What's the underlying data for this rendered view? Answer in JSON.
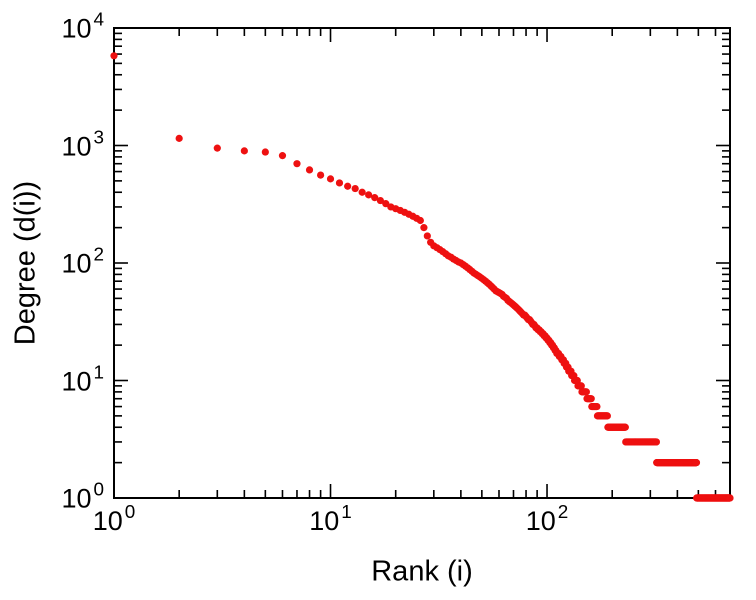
{
  "chart_data": {
    "type": "scatter",
    "title": "",
    "xlabel": "Rank (i)",
    "ylabel": "Degree (d(i))",
    "xscale": "log",
    "yscale": "log",
    "xlim": [
      1,
      700
    ],
    "ylim": [
      1,
      10000
    ],
    "grid": false,
    "legend": "none",
    "tick_label_base": "10",
    "x_tick_exponents": [
      0,
      1,
      2
    ],
    "y_tick_exponents": [
      0,
      1,
      2,
      3,
      4
    ],
    "background_color": "#ffffff",
    "frame_color": "#000000",
    "marker_color": "#ee1111",
    "marker_size": 3.6,
    "points_explicit": {
      "start_rank": 1,
      "degrees": [
        5800,
        1150,
        950,
        900,
        880,
        820,
        700,
        620,
        560,
        520,
        480,
        450,
        430,
        400,
        380,
        360,
        340,
        320,
        300,
        290,
        280,
        270,
        260,
        250,
        240,
        230,
        200,
        170,
        150,
        140,
        135,
        130,
        125,
        120,
        115,
        112,
        108,
        105,
        102,
        100,
        97,
        94,
        91,
        88,
        85,
        82,
        80,
        78,
        76,
        74,
        72,
        70,
        68,
        66,
        64,
        62,
        60,
        58,
        57,
        56,
        55,
        54,
        52,
        51,
        50,
        48,
        47,
        46,
        45,
        44,
        43,
        42,
        41,
        40,
        39,
        38,
        37,
        36,
        36,
        35,
        34,
        33,
        33,
        32,
        31,
        30,
        30,
        29,
        28,
        28,
        27,
        27,
        26,
        26,
        25,
        25,
        24,
        24,
        23,
        23,
        22,
        22,
        21,
        21,
        20,
        20,
        19,
        19,
        18,
        18,
        17,
        17,
        17,
        16,
        16,
        16,
        15,
        15,
        15,
        14,
        14,
        14,
        13,
        13,
        13,
        12,
        12,
        12,
        12,
        11,
        11,
        11,
        11,
        10,
        10,
        10,
        10,
        10,
        9,
        9,
        9,
        9,
        9,
        9,
        8
      ]
    },
    "tail_runs": [
      {
        "degree": 8,
        "from": 146,
        "to": 152
      },
      {
        "degree": 7,
        "from": 153,
        "to": 160
      },
      {
        "degree": 6,
        "from": 161,
        "to": 170
      },
      {
        "degree": 5,
        "from": 171,
        "to": 190
      },
      {
        "degree": 4,
        "from": 191,
        "to": 230
      },
      {
        "degree": 3,
        "from": 231,
        "to": 320
      },
      {
        "degree": 2,
        "from": 321,
        "to": 490
      },
      {
        "degree": 1,
        "from": 491,
        "to": 700
      }
    ]
  }
}
